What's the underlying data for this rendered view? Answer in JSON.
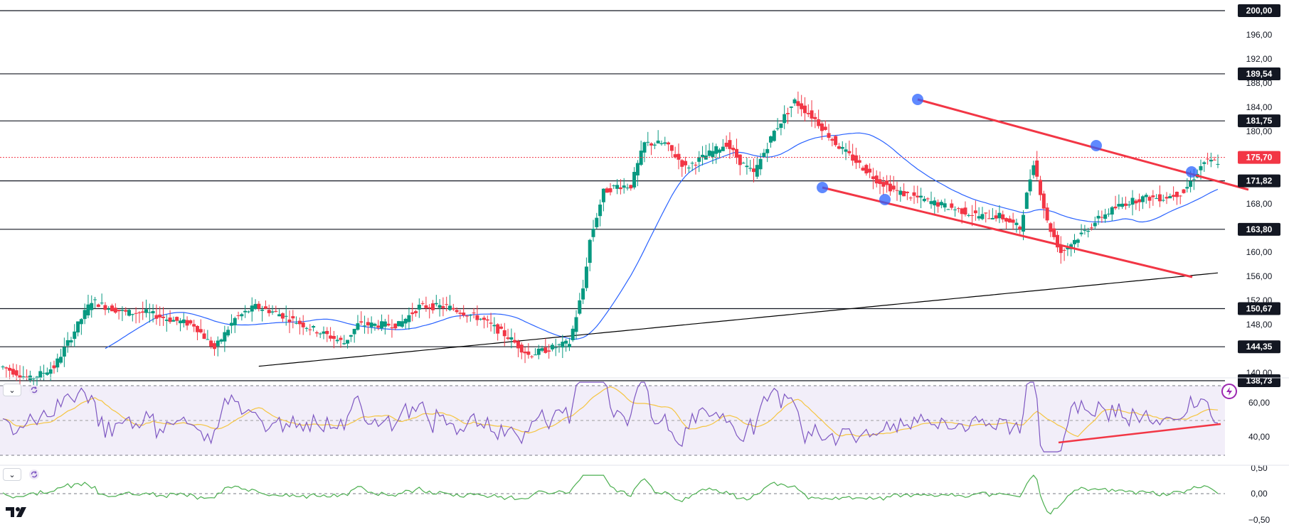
{
  "chart_data": {
    "type": "candlestick",
    "instrument": "",
    "price_scale": {
      "ticks": [
        "196,00",
        "192,00",
        "188,00",
        "184,00",
        "180,00",
        "168,00",
        "160,00",
        "156,00",
        "152,00",
        "148,00",
        "140,00"
      ],
      "ylim": [
        136.5,
        201.5
      ]
    },
    "current_price": {
      "label": "175,70",
      "value": 175.7,
      "color": "#f23645"
    },
    "horizontal_levels": [
      {
        "label": "200,00",
        "value": 200.0
      },
      {
        "label": "189,54",
        "value": 189.54
      },
      {
        "label": "181,75",
        "value": 181.75
      },
      {
        "label": "171,82",
        "value": 171.82
      },
      {
        "label": "163,80",
        "value": 163.8
      },
      {
        "label": "150,67",
        "value": 150.67
      },
      {
        "label": "144,35",
        "value": 144.35
      },
      {
        "label": "138,73",
        "value": 138.73
      }
    ],
    "price_path": [
      [
        0,
        141
      ],
      [
        8,
        139
      ],
      [
        15,
        141
      ],
      [
        22,
        148
      ],
      [
        26,
        152
      ],
      [
        30,
        151
      ],
      [
        36,
        150
      ],
      [
        42,
        150
      ],
      [
        48,
        149
      ],
      [
        56,
        148
      ],
      [
        62,
        144
      ],
      [
        68,
        149
      ],
      [
        74,
        151
      ],
      [
        80,
        150
      ],
      [
        88,
        148
      ],
      [
        96,
        146
      ],
      [
        100,
        145
      ],
      [
        104,
        148
      ],
      [
        110,
        148
      ],
      [
        116,
        148
      ],
      [
        122,
        151
      ],
      [
        130,
        151
      ],
      [
        140,
        149
      ],
      [
        148,
        146
      ],
      [
        154,
        143
      ],
      [
        160,
        144
      ],
      [
        166,
        145
      ],
      [
        170,
        154
      ],
      [
        172,
        162
      ],
      [
        176,
        170
      ],
      [
        180,
        171
      ],
      [
        184,
        171
      ],
      [
        188,
        178
      ],
      [
        194,
        178
      ],
      [
        200,
        174
      ],
      [
        206,
        176
      ],
      [
        212,
        178
      ],
      [
        216,
        175
      ],
      [
        220,
        173
      ],
      [
        226,
        180
      ],
      [
        232,
        185
      ],
      [
        238,
        182
      ],
      [
        244,
        178
      ],
      [
        250,
        175
      ],
      [
        256,
        172
      ],
      [
        262,
        170
      ],
      [
        268,
        169
      ],
      [
        274,
        168
      ],
      [
        280,
        167
      ],
      [
        286,
        166
      ],
      [
        292,
        166
      ],
      [
        298,
        164
      ],
      [
        302,
        175
      ],
      [
        306,
        165
      ],
      [
        310,
        160
      ],
      [
        316,
        163
      ],
      [
        322,
        166
      ],
      [
        328,
        168
      ],
      [
        334,
        169
      ],
      [
        340,
        169
      ],
      [
        346,
        170
      ],
      [
        352,
        175
      ],
      [
        356,
        175
      ]
    ],
    "moving_averages": [
      {
        "name": "",
        "color": "#2962ff"
      },
      {
        "name": "",
        "color": "#000000"
      }
    ],
    "trend_lines_color": "#f23645",
    "pivot_markers_color": "#2962ff",
    "rsi_pane": {
      "ticks": [
        "60,00",
        "40,00"
      ],
      "upper": 70,
      "lower": 30,
      "mid": 50,
      "line_color": "#7e57c2",
      "signal_color": "#f5c542"
    },
    "oscillator_pane": {
      "ticks": [
        "0,50",
        "0,00",
        "−0,50"
      ],
      "line_color": "#4caf50"
    }
  }
}
